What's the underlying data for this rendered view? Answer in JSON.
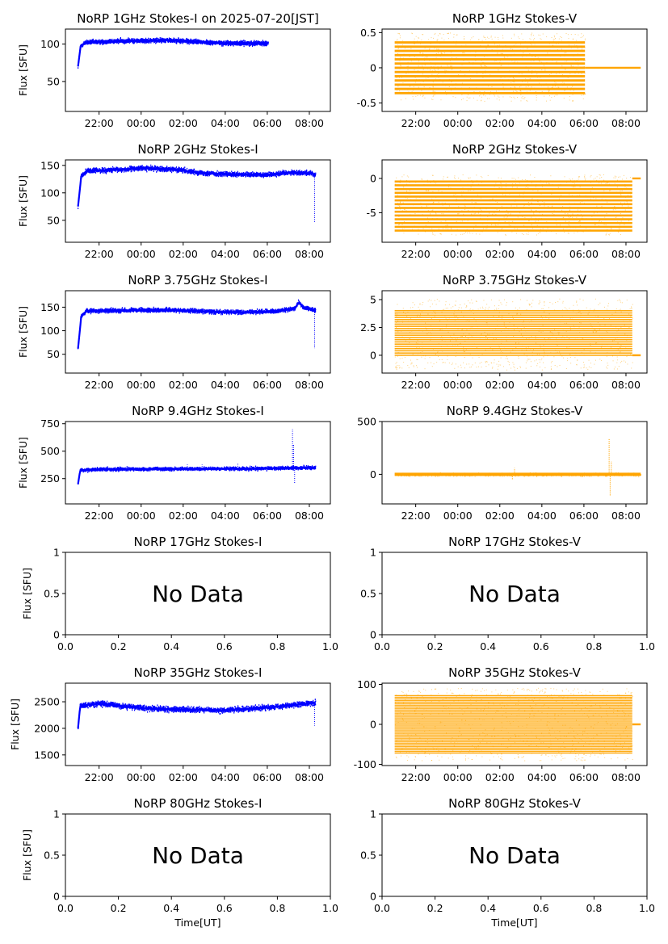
{
  "figure": {
    "date_label": "2025-07-20[JST]"
  },
  "chart_data": [
    {
      "id": "i1",
      "type": "scatter",
      "title": "NoRP 1GHz Stokes-I on 2025-07-20[JST]",
      "ylabel": "Flux [SFU]",
      "xlabel": "",
      "has_data": true,
      "color": "#0000ff",
      "ylim": [
        10,
        120
      ],
      "yticks": [
        50,
        100
      ],
      "xlim": [
        20.4,
        33.0
      ],
      "xticks": [
        22,
        24,
        26,
        28,
        30,
        32
      ],
      "xtick_labels": [
        "22:00",
        "00:00",
        "02:00",
        "04:00",
        "06:00",
        "08:00"
      ],
      "start": 21.0,
      "end": 30.05,
      "profile": [
        [
          21.0,
          70
        ],
        [
          21.12,
          97
        ],
        [
          21.35,
          102
        ],
        [
          23,
          104
        ],
        [
          25.3,
          105
        ],
        [
          28,
          101
        ],
        [
          30.05,
          101
        ]
      ],
      "noise": 2,
      "spikes": []
    },
    {
      "id": "v1",
      "type": "scatter",
      "title": "NoRP 1GHz Stokes-V",
      "ylabel": "",
      "xlabel": "",
      "has_data": true,
      "color": "#ffa500",
      "style": "bands",
      "ylim": [
        -0.62,
        0.55
      ],
      "yticks": [
        -0.5,
        0.0,
        0.5
      ],
      "xlim": [
        20.4,
        33.0
      ],
      "xticks": [
        22,
        24,
        26,
        28,
        30,
        32
      ],
      "xtick_labels": [
        "22:00",
        "00:00",
        "02:00",
        "04:00",
        "06:00",
        "08:00"
      ],
      "start": 21.0,
      "end": 30.05,
      "band_min": -0.36,
      "band_max": 0.36,
      "band_step": 0.06,
      "scatter_min": -0.47,
      "scatter_max": 0.5,
      "tail_end": 32.7,
      "tail_value": 0.0
    },
    {
      "id": "i2",
      "type": "scatter",
      "title": "NoRP 2GHz Stokes-I",
      "ylabel": "Flux [SFU]",
      "xlabel": "",
      "has_data": true,
      "color": "#0000ff",
      "ylim": [
        10,
        160
      ],
      "yticks": [
        50,
        100,
        150
      ],
      "xlim": [
        20.4,
        33.0
      ],
      "xticks": [
        22,
        24,
        26,
        28,
        30,
        32
      ],
      "xtick_labels": [
        "22:00",
        "00:00",
        "02:00",
        "04:00",
        "06:00",
        "08:00"
      ],
      "start": 21.0,
      "end": 32.3,
      "profile": [
        [
          21.0,
          75
        ],
        [
          21.15,
          130
        ],
        [
          21.4,
          140
        ],
        [
          23,
          142
        ],
        [
          24,
          145
        ],
        [
          25.5,
          143
        ],
        [
          27,
          136
        ],
        [
          28.5,
          133
        ],
        [
          30,
          133
        ],
        [
          31,
          137
        ],
        [
          32.1,
          136
        ],
        [
          32.3,
          132
        ]
      ],
      "noise": 3,
      "spikes": [
        [
          32.25,
          45
        ]
      ]
    },
    {
      "id": "v2",
      "type": "scatter",
      "title": "NoRP 2GHz Stokes-V",
      "ylabel": "",
      "xlabel": "",
      "has_data": true,
      "color": "#ffa500",
      "style": "bands",
      "ylim": [
        -9.3,
        2.7
      ],
      "yticks": [
        -5,
        0
      ],
      "xlim": [
        20.4,
        33.0
      ],
      "xticks": [
        22,
        24,
        26,
        28,
        30,
        32
      ],
      "xtick_labels": [
        "22:00",
        "00:00",
        "02:00",
        "04:00",
        "06:00",
        "08:00"
      ],
      "start": 21.0,
      "end": 32.3,
      "band_min": -7.6,
      "band_max": 0.0,
      "band_step": 0.55,
      "scatter_min": -8.2,
      "scatter_max": 0.6,
      "tail_end": 32.7,
      "tail_value": 0.0
    },
    {
      "id": "i3",
      "type": "scatter",
      "title": "NoRP 3.75GHz Stokes-I",
      "ylabel": "Flux [SFU]",
      "xlabel": "",
      "has_data": true,
      "color": "#0000ff",
      "ylim": [
        10,
        185
      ],
      "yticks": [
        50,
        100,
        150
      ],
      "xlim": [
        20.4,
        33.0
      ],
      "xticks": [
        22,
        24,
        26,
        28,
        30,
        32
      ],
      "xtick_labels": [
        "22:00",
        "00:00",
        "02:00",
        "04:00",
        "06:00",
        "08:00"
      ],
      "start": 21.0,
      "end": 32.3,
      "profile": [
        [
          21.0,
          62
        ],
        [
          21.15,
          130
        ],
        [
          21.4,
          142
        ],
        [
          23,
          143
        ],
        [
          25.5,
          144
        ],
        [
          27.5,
          140
        ],
        [
          29,
          139
        ],
        [
          30.5,
          142
        ],
        [
          31.3,
          147
        ],
        [
          31.5,
          160
        ],
        [
          31.7,
          150
        ],
        [
          32.3,
          143
        ]
      ],
      "noise": 3,
      "spikes": [
        [
          32.25,
          62
        ]
      ]
    },
    {
      "id": "v3",
      "type": "scatter",
      "title": "NoRP 3.75GHz Stokes-V",
      "ylabel": "",
      "xlabel": "",
      "has_data": true,
      "color": "#ffa500",
      "style": "bands",
      "ylim": [
        -1.6,
        5.8
      ],
      "yticks": [
        0.0,
        2.5,
        5.0
      ],
      "xlim": [
        20.4,
        33.0
      ],
      "xticks": [
        22,
        24,
        26,
        28,
        30,
        32
      ],
      "xtick_labels": [
        "22:00",
        "00:00",
        "02:00",
        "04:00",
        "06:00",
        "08:00"
      ],
      "start": 21.0,
      "end": 32.3,
      "band_min": 0.0,
      "band_max": 4.1,
      "band_step": 0.2,
      "scatter_min": -1.3,
      "scatter_max": 5.1,
      "tail_end": 32.7,
      "tail_value": 0.0
    },
    {
      "id": "i4",
      "type": "scatter",
      "title": "NoRP 9.4GHz Stokes-I",
      "ylabel": "Flux [SFU]",
      "xlabel": "",
      "has_data": true,
      "color": "#0000ff",
      "ylim": [
        20,
        770
      ],
      "yticks": [
        250,
        500,
        750
      ],
      "xlim": [
        20.4,
        33.0
      ],
      "xticks": [
        22,
        24,
        26,
        28,
        30,
        32
      ],
      "xtick_labels": [
        "22:00",
        "00:00",
        "02:00",
        "04:00",
        "06:00",
        "08:00"
      ],
      "start": 21.0,
      "end": 32.3,
      "profile": [
        [
          21.0,
          200
        ],
        [
          21.1,
          325
        ],
        [
          22,
          335
        ],
        [
          26,
          338
        ],
        [
          30,
          342
        ],
        [
          31.5,
          348
        ],
        [
          32.3,
          350
        ]
      ],
      "noise": 10,
      "spikes": [
        [
          23.0,
          370
        ],
        [
          26.2,
          380
        ],
        [
          26.9,
          380
        ],
        [
          27.0,
          370
        ],
        [
          28.6,
          390
        ],
        [
          31.2,
          700
        ],
        [
          31.25,
          560
        ],
        [
          31.3,
          210
        ]
      ]
    },
    {
      "id": "v4",
      "type": "scatter",
      "title": "NoRP 9.4GHz Stokes-V",
      "ylabel": "",
      "xlabel": "",
      "has_data": true,
      "color": "#ffa500",
      "style": "noise",
      "ylim": [
        -280,
        500
      ],
      "yticks": [
        0,
        500
      ],
      "xlim": [
        20.4,
        33.0
      ],
      "xticks": [
        22,
        24,
        26,
        28,
        30,
        32
      ],
      "xtick_labels": [
        "22:00",
        "00:00",
        "02:00",
        "04:00",
        "06:00",
        "08:00"
      ],
      "start": 21.0,
      "end": 32.7,
      "noise": 10,
      "spikes": [
        [
          26.6,
          -55
        ],
        [
          26.7,
          60
        ],
        [
          31.2,
          340
        ],
        [
          31.25,
          -200
        ],
        [
          31.3,
          120
        ]
      ]
    },
    {
      "id": "i5",
      "type": "empty",
      "title": "NoRP 17GHz Stokes-I",
      "ylabel": "Flux [SFU]",
      "xlabel": "",
      "has_data": false,
      "message": "No Data",
      "ylim": [
        0,
        1
      ],
      "yticks": [
        0.0,
        0.5,
        1.0
      ],
      "xlim": [
        0,
        1
      ],
      "xticks": [
        0.0,
        0.2,
        0.4,
        0.6,
        0.8,
        1.0
      ],
      "xtick_labels": [
        "0.0",
        "0.2",
        "0.4",
        "0.6",
        "0.8",
        "1.0"
      ]
    },
    {
      "id": "v5",
      "type": "empty",
      "title": "NoRP 17GHz Stokes-V",
      "ylabel": "",
      "xlabel": "",
      "has_data": false,
      "message": "No Data",
      "ylim": [
        0,
        1
      ],
      "yticks": [
        0.0,
        0.5,
        1.0
      ],
      "xlim": [
        0,
        1
      ],
      "xticks": [
        0.0,
        0.2,
        0.4,
        0.6,
        0.8,
        1.0
      ],
      "xtick_labels": [
        "0.0",
        "0.2",
        "0.4",
        "0.6",
        "0.8",
        "1.0"
      ]
    },
    {
      "id": "i6",
      "type": "scatter",
      "title": "NoRP 35GHz Stokes-I",
      "ylabel": "Flux [SFU]",
      "xlabel": "",
      "has_data": true,
      "color": "#0000ff",
      "ylim": [
        1300,
        2850
      ],
      "yticks": [
        1500,
        2000,
        2500
      ],
      "xlim": [
        20.4,
        33.0
      ],
      "xticks": [
        22,
        24,
        26,
        28,
        30,
        32
      ],
      "xtick_labels": [
        "22:00",
        "00:00",
        "02:00",
        "04:00",
        "06:00",
        "08:00"
      ],
      "start": 21.0,
      "end": 32.3,
      "profile": [
        [
          21.0,
          2000
        ],
        [
          21.1,
          2420
        ],
        [
          22,
          2470
        ],
        [
          24,
          2380
        ],
        [
          26,
          2350
        ],
        [
          28,
          2340
        ],
        [
          30,
          2390
        ],
        [
          31.5,
          2450
        ],
        [
          32.3,
          2480
        ]
      ],
      "noise": 35,
      "spikes": [
        [
          32.25,
          2050
        ]
      ]
    },
    {
      "id": "v6",
      "type": "scatter",
      "title": "NoRP 35GHz Stokes-V",
      "ylabel": "",
      "xlabel": "",
      "has_data": true,
      "color": "#ffa500",
      "style": "bands",
      "ylim": [
        -103,
        103
      ],
      "yticks": [
        -100,
        0,
        100
      ],
      "xlim": [
        20.4,
        33.0
      ],
      "xticks": [
        22,
        24,
        26,
        28,
        30,
        32
      ],
      "xtick_labels": [
        "22:00",
        "00:00",
        "02:00",
        "04:00",
        "06:00",
        "08:00"
      ],
      "start": 21.0,
      "end": 32.3,
      "band_min": -72,
      "band_max": 72,
      "band_step": 4,
      "scatter_min": -90,
      "scatter_max": 92,
      "tail_end": 32.7,
      "tail_value": 0.0
    },
    {
      "id": "i7",
      "type": "empty",
      "title": "NoRP 80GHz Stokes-I",
      "ylabel": "Flux [SFU]",
      "xlabel": "Time[UT]",
      "has_data": false,
      "message": "No Data",
      "ylim": [
        0,
        1
      ],
      "yticks": [
        0.0,
        0.5,
        1.0
      ],
      "xlim": [
        0,
        1
      ],
      "xticks": [
        0.0,
        0.2,
        0.4,
        0.6,
        0.8,
        1.0
      ],
      "xtick_labels": [
        "0.0",
        "0.2",
        "0.4",
        "0.6",
        "0.8",
        "1.0"
      ]
    },
    {
      "id": "v7",
      "type": "empty",
      "title": "NoRP 80GHz Stokes-V",
      "ylabel": "",
      "xlabel": "Time[UT]",
      "has_data": false,
      "message": "No Data",
      "ylim": [
        0,
        1
      ],
      "yticks": [
        0.0,
        0.5,
        1.0
      ],
      "xlim": [
        0,
        1
      ],
      "xticks": [
        0.0,
        0.2,
        0.4,
        0.6,
        0.8,
        1.0
      ],
      "xtick_labels": [
        "0.0",
        "0.2",
        "0.4",
        "0.6",
        "0.8",
        "1.0"
      ]
    }
  ]
}
